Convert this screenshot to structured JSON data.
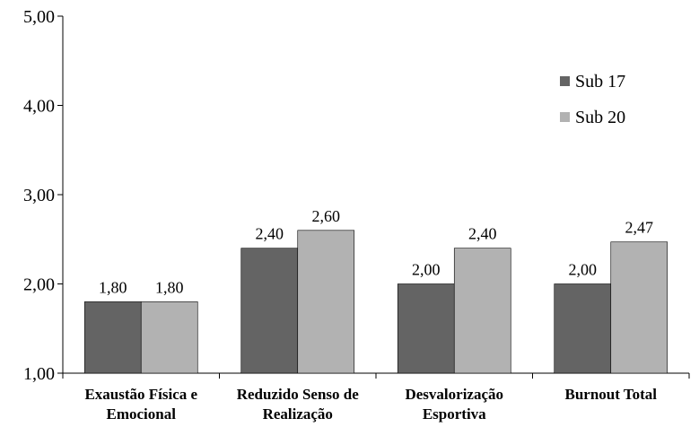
{
  "chart_data": {
    "type": "bar",
    "categories": [
      [
        "Exaustão Física e",
        "Emocional"
      ],
      [
        "Reduzido Senso de",
        "Realização"
      ],
      [
        "Desvalorização",
        "Esportiva"
      ],
      [
        "Burnout Total"
      ]
    ],
    "series": [
      {
        "name": "Sub 17",
        "values": [
          1.8,
          2.4,
          2.0,
          2.0
        ],
        "labels": [
          "1,80",
          "2,40",
          "2,00",
          "2,00"
        ],
        "color": "#646464"
      },
      {
        "name": "Sub 20",
        "values": [
          1.8,
          2.6,
          2.4,
          2.47
        ],
        "labels": [
          "1,80",
          "2,60",
          "2,40",
          "2,47"
        ],
        "color": "#b2b2b2"
      }
    ],
    "ylim": [
      1.0,
      5.0
    ],
    "yticks": [
      1,
      2,
      3,
      4,
      5
    ],
    "ytick_labels": [
      "1,00",
      "2,00",
      "3,00",
      "4,00",
      "5,00"
    ],
    "grid": false,
    "legend_position": "top-right"
  }
}
